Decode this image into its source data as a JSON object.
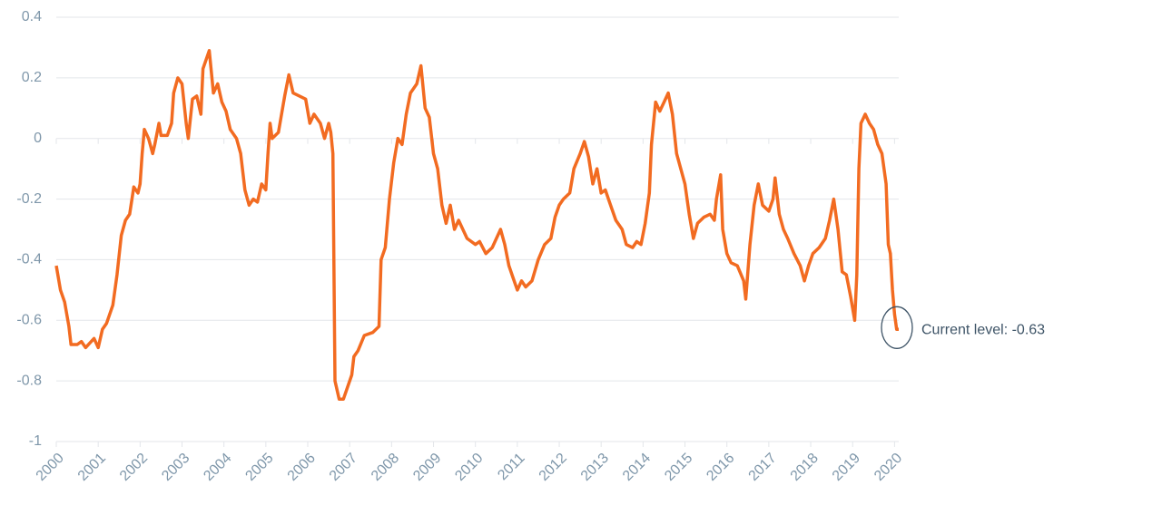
{
  "chart_data": {
    "type": "line",
    "color": "#f26b21",
    "grid": true,
    "annotation": "Current level: -0.63",
    "xlim": [
      2000,
      2020.1
    ],
    "xticks": [
      2000,
      2001,
      2002,
      2003,
      2004,
      2005,
      2006,
      2007,
      2008,
      2009,
      2010,
      2011,
      2012,
      2013,
      2014,
      2015,
      2016,
      2017,
      2018,
      2019,
      2020
    ],
    "ylim": [
      -1,
      0.4
    ],
    "yticks": [
      -1,
      -0.8,
      -0.6,
      -0.4,
      -0.2,
      0,
      0.2,
      0.4
    ],
    "x": [
      2000.0,
      2000.1,
      2000.2,
      2000.3,
      2000.35,
      2000.5,
      2000.6,
      2000.7,
      2000.9,
      2001.0,
      2001.1,
      2001.2,
      2001.35,
      2001.45,
      2001.55,
      2001.65,
      2001.75,
      2001.85,
      2001.95,
      2002.0,
      2002.05,
      2002.1,
      2002.2,
      2002.3,
      2002.35,
      2002.45,
      2002.5,
      2002.65,
      2002.75,
      2002.8,
      2002.9,
      2003.0,
      2003.1,
      2003.15,
      2003.25,
      2003.35,
      2003.45,
      2003.5,
      2003.65,
      2003.75,
      2003.85,
      2003.95,
      2004.05,
      2004.15,
      2004.3,
      2004.4,
      2004.5,
      2004.6,
      2004.7,
      2004.8,
      2004.9,
      2005.0,
      2005.05,
      2005.1,
      2005.15,
      2005.3,
      2005.45,
      2005.55,
      2005.65,
      2005.8,
      2005.95,
      2006.05,
      2006.15,
      2006.3,
      2006.4,
      2006.5,
      2006.55,
      2006.6,
      2006.65,
      2006.75,
      2006.85,
      2006.95,
      2007.05,
      2007.1,
      2007.2,
      2007.35,
      2007.55,
      2007.7,
      2007.75,
      2007.85,
      2007.95,
      2008.05,
      2008.15,
      2008.25,
      2008.35,
      2008.45,
      2008.6,
      2008.7,
      2008.8,
      2008.9,
      2009.0,
      2009.1,
      2009.2,
      2009.3,
      2009.4,
      2009.5,
      2009.6,
      2009.8,
      2010.0,
      2010.1,
      2010.25,
      2010.4,
      2010.6,
      2010.7,
      2010.8,
      2010.9,
      2011.0,
      2011.1,
      2011.2,
      2011.35,
      2011.5,
      2011.65,
      2011.8,
      2011.9,
      2012.0,
      2012.1,
      2012.25,
      2012.35,
      2012.5,
      2012.6,
      2012.7,
      2012.8,
      2012.9,
      2013.0,
      2013.1,
      2013.2,
      2013.35,
      2013.5,
      2013.6,
      2013.75,
      2013.85,
      2013.95,
      2014.05,
      2014.15,
      2014.2,
      2014.3,
      2014.4,
      2014.5,
      2014.6,
      2014.7,
      2014.8,
      2014.9,
      2015.0,
      2015.1,
      2015.2,
      2015.3,
      2015.45,
      2015.6,
      2015.7,
      2015.75,
      2015.85,
      2015.9,
      2016.0,
      2016.1,
      2016.25,
      2016.4,
      2016.45,
      2016.55,
      2016.65,
      2016.75,
      2016.85,
      2017.0,
      2017.1,
      2017.15,
      2017.25,
      2017.35,
      2017.45,
      2017.6,
      2017.75,
      2017.85,
      2017.95,
      2018.05,
      2018.2,
      2018.35,
      2018.45,
      2018.55,
      2018.65,
      2018.75,
      2018.85,
      2018.95,
      2019.05,
      2019.1,
      2019.15,
      2019.2,
      2019.3,
      2019.4,
      2019.5,
      2019.6,
      2019.7,
      2019.8,
      2019.85,
      2019.9,
      2019.95,
      2020.0,
      2020.05,
      2020.1
    ],
    "values": [
      -0.42,
      -0.5,
      -0.54,
      -0.62,
      -0.68,
      -0.68,
      -0.67,
      -0.69,
      -0.66,
      -0.69,
      -0.63,
      -0.61,
      -0.55,
      -0.45,
      -0.32,
      -0.27,
      -0.25,
      -0.16,
      -0.18,
      -0.15,
      -0.05,
      0.03,
      0.0,
      -0.05,
      -0.02,
      0.05,
      0.01,
      0.01,
      0.05,
      0.15,
      0.2,
      0.18,
      0.05,
      0.0,
      0.13,
      0.14,
      0.08,
      0.23,
      0.29,
      0.15,
      0.18,
      0.12,
      0.09,
      0.03,
      0.0,
      -0.05,
      -0.17,
      -0.22,
      -0.2,
      -0.21,
      -0.15,
      -0.17,
      -0.05,
      0.05,
      0.0,
      0.02,
      0.14,
      0.21,
      0.15,
      0.14,
      0.13,
      0.05,
      0.08,
      0.05,
      0.0,
      0.05,
      0.02,
      -0.05,
      -0.8,
      -0.86,
      -0.86,
      -0.82,
      -0.78,
      -0.72,
      -0.7,
      -0.65,
      -0.64,
      -0.62,
      -0.4,
      -0.36,
      -0.2,
      -0.08,
      0.0,
      -0.02,
      0.08,
      0.15,
      0.18,
      0.24,
      0.1,
      0.07,
      -0.05,
      -0.1,
      -0.22,
      -0.28,
      -0.22,
      -0.3,
      -0.27,
      -0.33,
      -0.35,
      -0.34,
      -0.38,
      -0.36,
      -0.3,
      -0.35,
      -0.42,
      -0.46,
      -0.5,
      -0.47,
      -0.49,
      -0.47,
      -0.4,
      -0.35,
      -0.33,
      -0.26,
      -0.22,
      -0.2,
      -0.18,
      -0.1,
      -0.05,
      -0.01,
      -0.06,
      -0.15,
      -0.1,
      -0.18,
      -0.17,
      -0.21,
      -0.27,
      -0.3,
      -0.35,
      -0.36,
      -0.34,
      -0.35,
      -0.28,
      -0.18,
      -0.02,
      0.12,
      0.09,
      0.12,
      0.15,
      0.08,
      -0.05,
      -0.1,
      -0.15,
      -0.25,
      -0.33,
      -0.28,
      -0.26,
      -0.25,
      -0.27,
      -0.2,
      -0.12,
      -0.3,
      -0.38,
      -0.41,
      -0.42,
      -0.47,
      -0.53,
      -0.35,
      -0.22,
      -0.15,
      -0.22,
      -0.24,
      -0.2,
      -0.13,
      -0.25,
      -0.3,
      -0.33,
      -0.38,
      -0.42,
      -0.47,
      -0.42,
      -0.38,
      -0.36,
      -0.33,
      -0.27,
      -0.2,
      -0.3,
      -0.44,
      -0.45,
      -0.52,
      -0.6,
      -0.45,
      -0.1,
      0.05,
      0.08,
      0.05,
      0.03,
      -0.02,
      -0.05,
      -0.15,
      -0.35,
      -0.38,
      -0.5,
      -0.58,
      -0.63,
      -0.63
    ]
  }
}
